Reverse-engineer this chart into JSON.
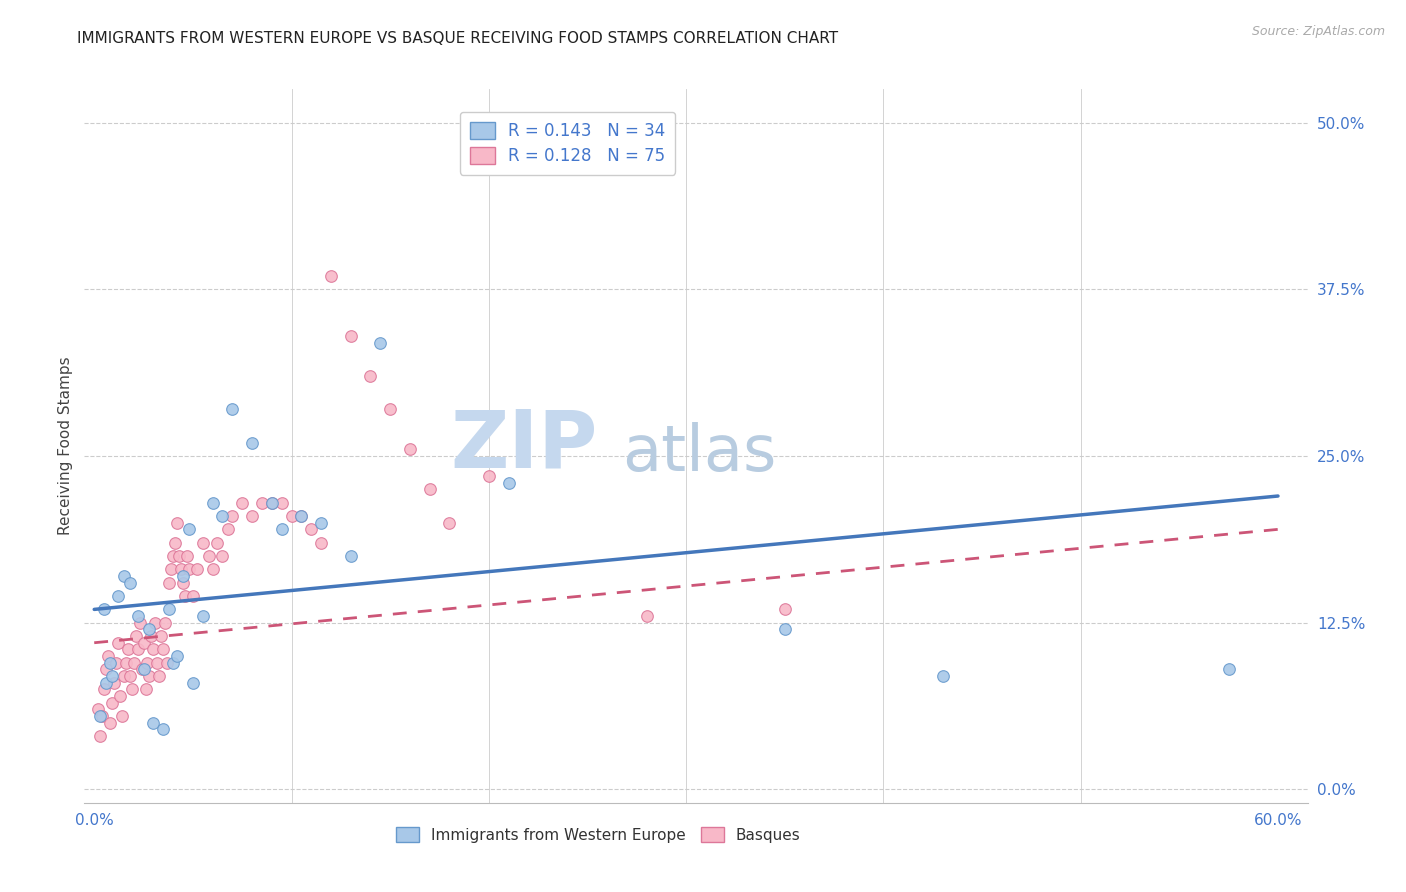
{
  "title": "IMMIGRANTS FROM WESTERN EUROPE VS BASQUE RECEIVING FOOD STAMPS CORRELATION CHART",
  "source": "Source: ZipAtlas.com",
  "xlabel_blue": "Immigrants from Western Europe",
  "xlabel_pink": "Basques",
  "ylabel": "Receiving Food Stamps",
  "xlim": [
    -0.005,
    0.615
  ],
  "ylim": [
    -0.01,
    0.525
  ],
  "yticks_right": [
    0.0,
    0.125,
    0.25,
    0.375,
    0.5
  ],
  "yticklabels_right": [
    "0.0%",
    "12.5%",
    "25.0%",
    "37.5%",
    "50.0%"
  ],
  "legend_R_blue": "R = 0.143",
  "legend_N_blue": "N = 34",
  "legend_R_pink": "R = 0.128",
  "legend_N_pink": "N = 75",
  "blue_fill": "#A8C8E8",
  "pink_fill": "#F8B8C8",
  "blue_edge": "#6699CC",
  "pink_edge": "#DD7799",
  "blue_line": "#4477BB",
  "pink_line": "#CC5577",
  "title_color": "#222222",
  "axis_label_color": "#4477CC",
  "tick_color": "#4477CC",
  "background_color": "#FFFFFF",
  "grid_color": "#CCCCCC",
  "blue_scatter_x": [
    0.005,
    0.008,
    0.003,
    0.012,
    0.006,
    0.015,
    0.009,
    0.018,
    0.022,
    0.025,
    0.03,
    0.028,
    0.035,
    0.04,
    0.038,
    0.045,
    0.042,
    0.05,
    0.048,
    0.055,
    0.06,
    0.065,
    0.07,
    0.08,
    0.09,
    0.095,
    0.105,
    0.115,
    0.13,
    0.145,
    0.21,
    0.35,
    0.43,
    0.575
  ],
  "blue_scatter_y": [
    0.135,
    0.095,
    0.055,
    0.145,
    0.08,
    0.16,
    0.085,
    0.155,
    0.13,
    0.09,
    0.05,
    0.12,
    0.045,
    0.095,
    0.135,
    0.16,
    0.1,
    0.08,
    0.195,
    0.13,
    0.215,
    0.205,
    0.285,
    0.26,
    0.215,
    0.195,
    0.205,
    0.2,
    0.175,
    0.335,
    0.23,
    0.12,
    0.085,
    0.09
  ],
  "pink_scatter_x": [
    0.002,
    0.003,
    0.004,
    0.005,
    0.006,
    0.007,
    0.008,
    0.009,
    0.01,
    0.011,
    0.012,
    0.013,
    0.014,
    0.015,
    0.016,
    0.017,
    0.018,
    0.019,
    0.02,
    0.021,
    0.022,
    0.023,
    0.024,
    0.025,
    0.026,
    0.027,
    0.028,
    0.029,
    0.03,
    0.031,
    0.032,
    0.033,
    0.034,
    0.035,
    0.036,
    0.037,
    0.038,
    0.039,
    0.04,
    0.041,
    0.042,
    0.043,
    0.044,
    0.045,
    0.046,
    0.047,
    0.048,
    0.05,
    0.052,
    0.055,
    0.058,
    0.06,
    0.062,
    0.065,
    0.068,
    0.07,
    0.075,
    0.08,
    0.085,
    0.09,
    0.095,
    0.1,
    0.105,
    0.11,
    0.115,
    0.12,
    0.13,
    0.14,
    0.15,
    0.16,
    0.17,
    0.18,
    0.2,
    0.28,
    0.35
  ],
  "pink_scatter_y": [
    0.06,
    0.04,
    0.055,
    0.075,
    0.09,
    0.1,
    0.05,
    0.065,
    0.08,
    0.095,
    0.11,
    0.07,
    0.055,
    0.085,
    0.095,
    0.105,
    0.085,
    0.075,
    0.095,
    0.115,
    0.105,
    0.125,
    0.09,
    0.11,
    0.075,
    0.095,
    0.085,
    0.115,
    0.105,
    0.125,
    0.095,
    0.085,
    0.115,
    0.105,
    0.125,
    0.095,
    0.155,
    0.165,
    0.175,
    0.185,
    0.2,
    0.175,
    0.165,
    0.155,
    0.145,
    0.175,
    0.165,
    0.145,
    0.165,
    0.185,
    0.175,
    0.165,
    0.185,
    0.175,
    0.195,
    0.205,
    0.215,
    0.205,
    0.215,
    0.215,
    0.215,
    0.205,
    0.205,
    0.195,
    0.185,
    0.385,
    0.34,
    0.31,
    0.285,
    0.255,
    0.225,
    0.2,
    0.235,
    0.13,
    0.135
  ],
  "blue_line_x0": 0.0,
  "blue_line_x1": 0.6,
  "blue_line_y0": 0.135,
  "blue_line_y1": 0.22,
  "pink_line_x0": 0.0,
  "pink_line_x1": 0.6,
  "pink_line_y0": 0.11,
  "pink_line_y1": 0.195,
  "marker_size": 70,
  "watermark_zip": "ZIP",
  "watermark_atlas": "atlas",
  "watermark_color_zip": "#C5D8EE",
  "watermark_color_atlas": "#B8CCE0"
}
